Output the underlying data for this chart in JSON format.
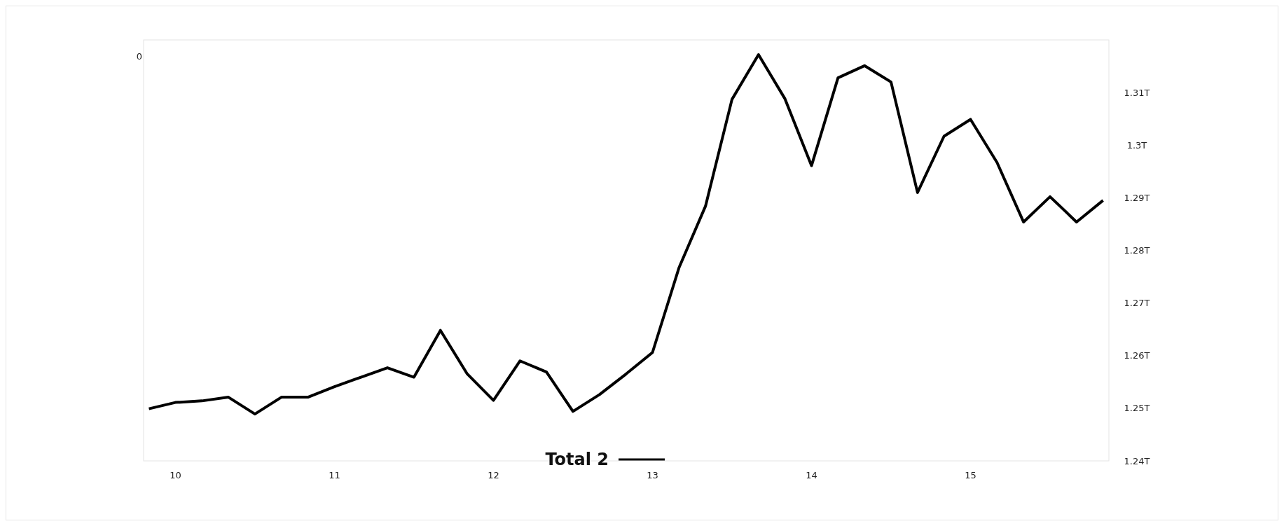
{
  "chart_data": {
    "type": "line",
    "x": [
      9.8333,
      10,
      10.1667,
      10.3333,
      10.5,
      10.6667,
      10.8333,
      11,
      11.1667,
      11.3333,
      11.5,
      11.6667,
      11.8333,
      12,
      12.1667,
      12.3333,
      12.5,
      12.6667,
      12.8333,
      13,
      13.1667,
      13.3333,
      13.5,
      13.6667,
      13.8333,
      14,
      14.1667,
      14.3333,
      14.5,
      14.6667,
      14.8333,
      15,
      15.1667,
      15.3333,
      15.5,
      15.6667,
      15.8333
    ],
    "series": [
      {
        "name": "Total 2",
        "color": "#000000",
        "values": [
          1249900000000,
          1251100000000,
          1251400000000,
          1252100000000,
          1248900000000,
          1252100000000,
          1252100000000,
          1254100000000,
          1255900000000,
          1257700000000,
          1255900000000,
          1264800000000,
          1256600000000,
          1251500000000,
          1259000000000,
          1256900000000,
          1249400000000,
          1252600000000,
          1256500000000,
          1260600000000,
          1276700000000,
          1288400000000,
          1308700000000,
          1317200000000,
          1308800000000,
          1296100000000,
          1312800000000,
          1315100000000,
          1312000000000,
          1291000000000,
          1301700000000,
          1304900000000,
          1296700000000,
          1285400000000,
          1290200000000,
          1285400000000,
          1289500000000
        ]
      }
    ],
    "xlim": [
      9.8,
      15.87
    ],
    "xticks": [
      10,
      11,
      12,
      13,
      14,
      15
    ],
    "ylim": [
      1240000000000,
      1320000000000
    ],
    "yticks": [
      {
        "value": 1240000000000,
        "label": "1.24T"
      },
      {
        "value": 1250000000000,
        "label": "1.25T"
      },
      {
        "value": 1260000000000,
        "label": "1.26T"
      },
      {
        "value": 1270000000000,
        "label": "1.27T"
      },
      {
        "value": 1280000000000,
        "label": "1.28T"
      },
      {
        "value": 1290000000000,
        "label": "1.29T"
      },
      {
        "value": 1300000000000,
        "label": "1.3T"
      },
      {
        "value": 1310000000000,
        "label": "1.31T"
      }
    ],
    "grid": false,
    "legend": "bottom",
    "marker": "none",
    "line_style": "solid",
    "annotations": [
      "0"
    ]
  }
}
